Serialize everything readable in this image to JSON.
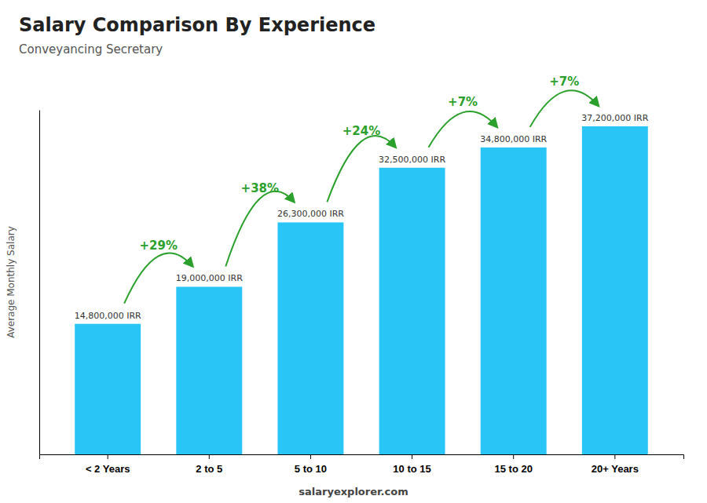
{
  "chart_data": {
    "type": "bar",
    "title": "Salary Comparison By Experience",
    "subtitle": "Conveyancing Secretary",
    "ylabel": "Average Monthly Salary",
    "categories": [
      "< 2 Years",
      "2 to 5",
      "5 to 10",
      "10 to 15",
      "15 to 20",
      "20+ Years"
    ],
    "values": [
      14800000,
      19000000,
      26300000,
      32500000,
      34800000,
      37200000
    ],
    "value_labels": [
      "14,800,000 IRR",
      "19,000,000 IRR",
      "26,300,000 IRR",
      "32,500,000 IRR",
      "34,800,000 IRR",
      "37,200,000 IRR"
    ],
    "data_labels": true,
    "annotations": [
      "+29%",
      "+38%",
      "+24%",
      "+7%",
      "+7%"
    ],
    "footer": "salaryexplorer.com",
    "color": "#29C5F6",
    "ylim": [
      0,
      39060000
    ],
    "grid": false,
    "tick_labels": "x"
  }
}
